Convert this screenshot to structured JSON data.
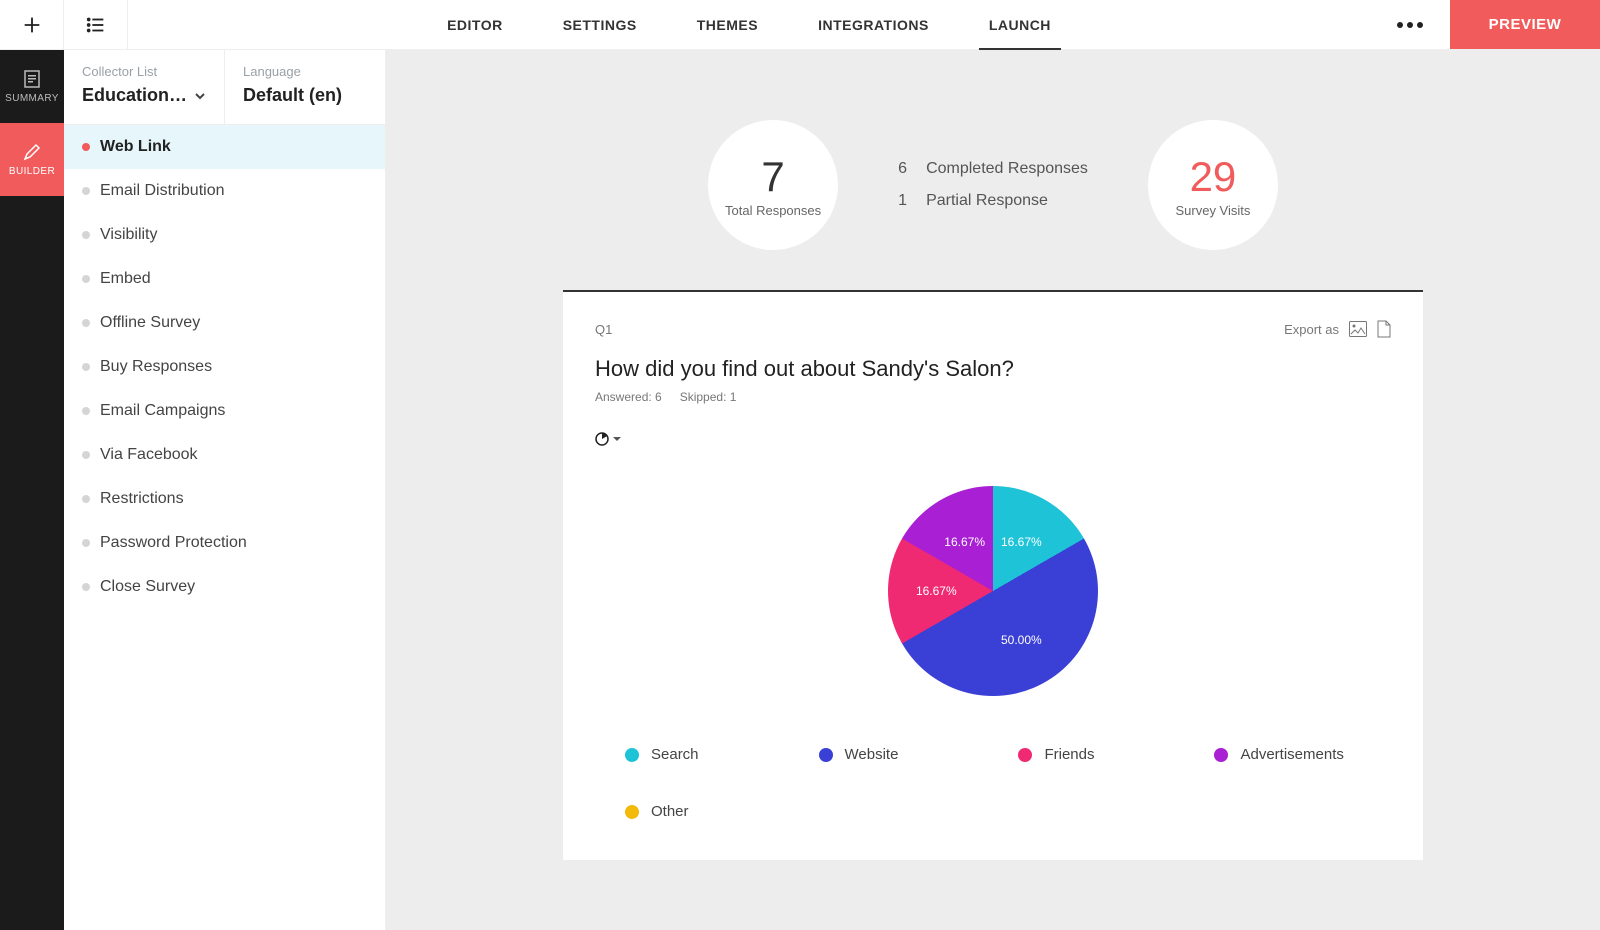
{
  "colors": {
    "accent": "#f15b5b",
    "darkRail": "#1b1b1b",
    "contentBg": "#ededed",
    "textMuted": "#9aa0a6"
  },
  "topbar": {
    "tabs": [
      "EDITOR",
      "SETTINGS",
      "THEMES",
      "INTEGRATIONS",
      "LAUNCH"
    ],
    "activeTab": "LAUNCH",
    "preview": "PREVIEW"
  },
  "rail": {
    "items": [
      {
        "label": "SUMMARY",
        "icon": "doc"
      },
      {
        "label": "BUILDER",
        "icon": "pencil"
      }
    ],
    "activeIndex": 1
  },
  "sidepanel": {
    "collector": {
      "label": "Collector List",
      "value": "Educational …"
    },
    "language": {
      "label": "Language",
      "value": "Default (en)"
    },
    "items": [
      "Web Link",
      "Email Distribution",
      "Visibility",
      "Embed",
      "Offline Survey",
      "Buy Responses",
      "Email Campaigns",
      "Via Facebook",
      "Restrictions",
      "Password Protection",
      "Close Survey"
    ],
    "activeIndex": 0
  },
  "stats": {
    "totalResponses": {
      "value": "7",
      "label": "Total Responses"
    },
    "completed": {
      "value": "6",
      "label": "Completed Responses"
    },
    "partial": {
      "value": "1",
      "label": "Partial Response"
    },
    "visits": {
      "value": "29",
      "label": "Survey Visits"
    }
  },
  "question": {
    "id": "Q1",
    "exportLabel": "Export as",
    "title": "How did you find out about Sandy's Salon?",
    "answered": "Answered: 6",
    "skipped": "Skipped: 1",
    "chart": {
      "type": "pie",
      "background": "#ffffff",
      "diameter": 210,
      "label_fontsize": 12,
      "label_color": "#ffffff",
      "slices": [
        {
          "name": "Search",
          "value": 16.67,
          "label": "16.67%",
          "color": "#1fc3d8"
        },
        {
          "name": "Website",
          "value": 50.0,
          "label": "50.00%",
          "color": "#3a3fd6"
        },
        {
          "name": "Friends",
          "value": 16.67,
          "label": "16.67%",
          "color": "#ef2a72"
        },
        {
          "name": "Advertisements",
          "value": 16.67,
          "label": "16.67%",
          "color": "#a81fd4"
        },
        {
          "name": "Other",
          "value": 0.0,
          "label": "",
          "color": "#f3b90b"
        }
      ]
    }
  }
}
